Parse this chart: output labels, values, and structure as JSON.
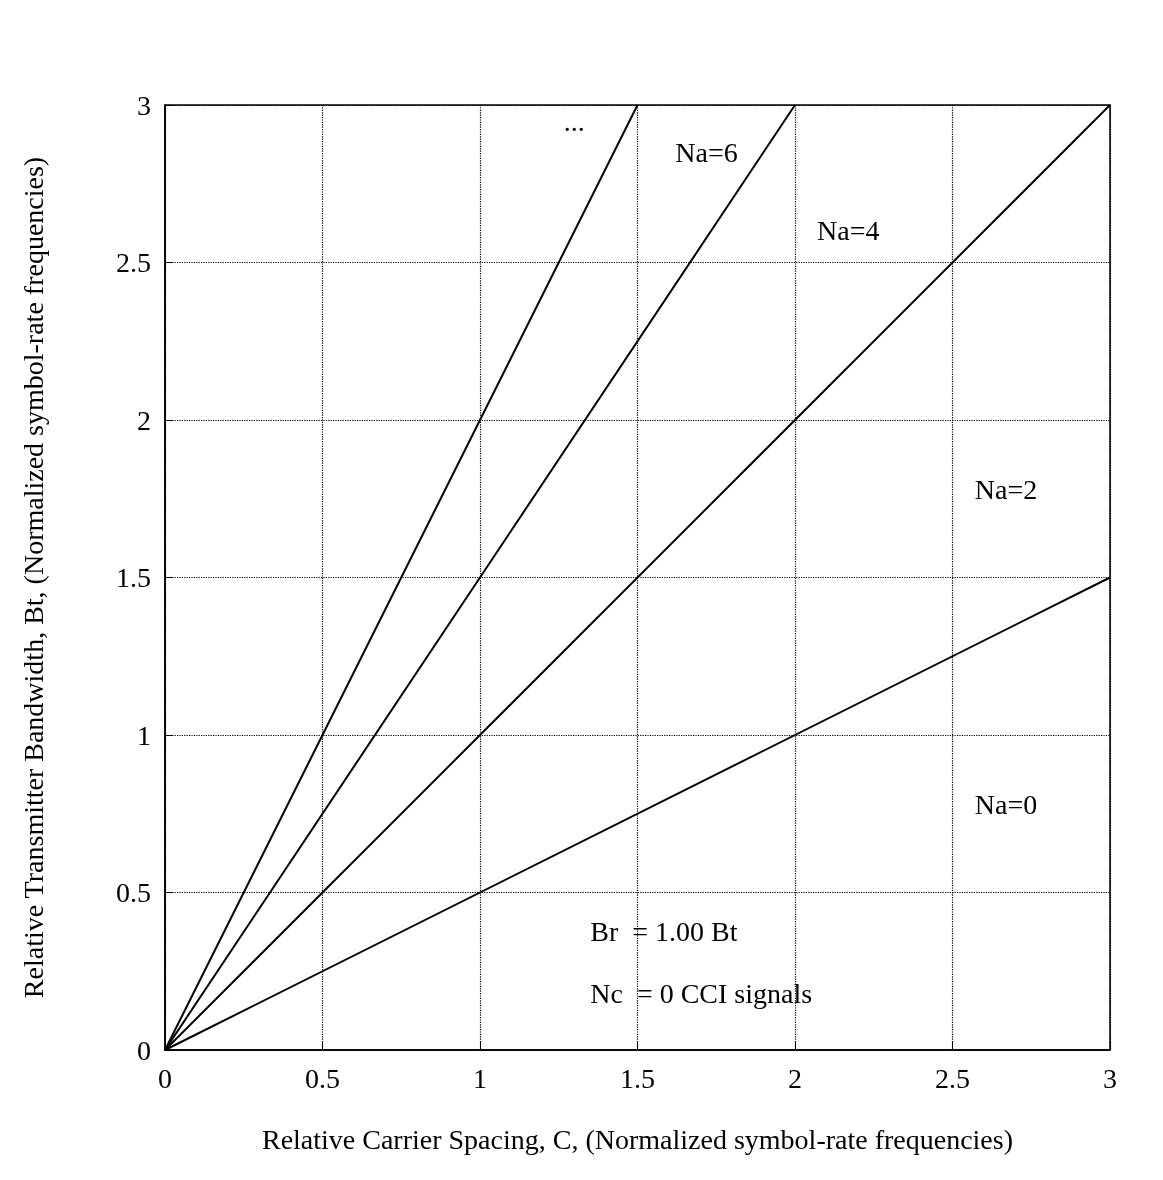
{
  "chart_data": {
    "type": "line",
    "xlabel": "Relative Carrier Spacing, C, (Normalized symbol-rate frequencies)",
    "ylabel": "Relative Transmitter Bandwidth, Bt, (Normalized symbol-rate frequencies)",
    "series": [
      {
        "color": "#000000",
        "x": [
          0,
          3
        ],
        "values": [
          0,
          1.5
        ]
      },
      {
        "color": "#000000",
        "x": [
          0,
          3
        ],
        "values": [
          0,
          3
        ]
      },
      {
        "color": "#000000",
        "x": [
          0,
          2
        ],
        "values": [
          0,
          3
        ]
      },
      {
        "color": "#000000",
        "x": [
          0,
          1.5
        ],
        "values": [
          0,
          3
        ]
      }
    ],
    "xlim": [
      0,
      3
    ],
    "xticks": [
      0,
      0.5,
      1,
      1.5,
      2,
      2.5,
      3
    ],
    "ylim": [
      0,
      3
    ],
    "yticks": [
      0,
      0.5,
      1,
      1.5,
      2,
      2.5,
      3
    ],
    "grid": true,
    "marker": "none",
    "line_style": "solid",
    "annotations": [
      "...",
      "Na=6",
      "Na=4",
      "Na=2",
      "Na=0",
      "Br  = 1.00 Bt",
      "Nc  = 0 CCI signals"
    ]
  }
}
